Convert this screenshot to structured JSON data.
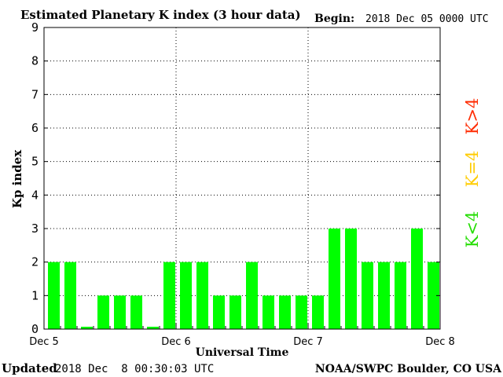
{
  "title": "Estimated Planetary K index (3 hour data)",
  "begin_label": "Begin:",
  "begin_value": "2018 Dec 05 0000 UTC",
  "updated_label": "Updated",
  "updated_value": "2018 Dec  8 00:30:03 UTC",
  "footer_right": "NOAA/SWPC Boulder, CO USA",
  "legend": [
    {
      "label": "K>4",
      "color": "#ff2a00"
    },
    {
      "label": "K=4",
      "color": "#ffcc00"
    },
    {
      "label": "K<4",
      "color": "#22dd00"
    }
  ],
  "colors": {
    "bar": "#00ff00",
    "axis": "#000000",
    "grid": "#000000"
  },
  "chart_data": {
    "type": "bar",
    "ylabel": "Kp index",
    "xlabel": "Universal Time",
    "ylim": [
      0,
      9
    ],
    "y_ticks": [
      "0",
      "1",
      "2",
      "3",
      "4",
      "5",
      "6",
      "7",
      "8",
      "9"
    ],
    "x_ticks": [
      "Dec 5",
      "Dec 6",
      "Dec 7",
      "Dec 8"
    ],
    "bars_per_day": 8,
    "grid": "dotted, horizontal at each integer, vertical at each day",
    "values": [
      2,
      2,
      0.07,
      1,
      1,
      1,
      0.07,
      2,
      2,
      2,
      1,
      1,
      2,
      1,
      1,
      1,
      1,
      3,
      3,
      2,
      2,
      2,
      3,
      2
    ]
  }
}
